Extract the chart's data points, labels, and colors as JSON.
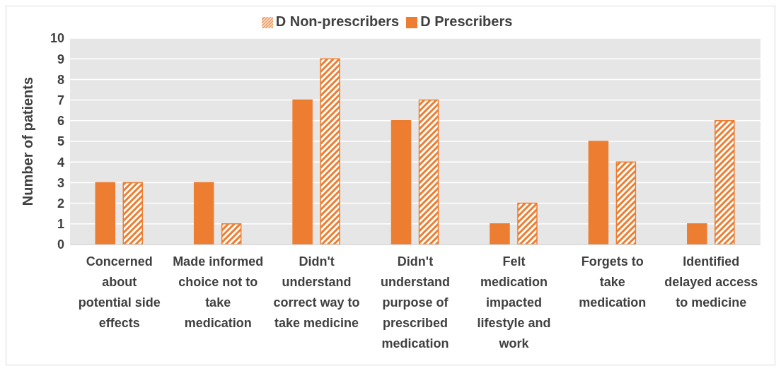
{
  "chart_data": {
    "type": "bar",
    "ylabel": "Number of patients",
    "categories": [
      "Concerned about potential side effects",
      "Made informed choice not to take medication",
      "Didn't understand correct way to take medicine",
      "Didn't understand purpose of prescribed medication",
      "Felt medication impacted lifestyle and work",
      "Forgets to take medication",
      "Identified delayed access to medicine"
    ],
    "series": [
      {
        "name": "D Prescribers",
        "color": "#ed7d31",
        "values": [
          3,
          3,
          7,
          6,
          1,
          5,
          1
        ]
      },
      {
        "name": "D Non-prescribers",
        "color": "#ed7d31",
        "values": [
          3,
          1,
          9,
          7,
          2,
          4,
          6
        ]
      }
    ],
    "ylim": [
      0,
      10
    ],
    "yticks": [
      0,
      1,
      2,
      3,
      4,
      5,
      6,
      7,
      8,
      9,
      10
    ],
    "grid": "y",
    "legend": "top"
  }
}
